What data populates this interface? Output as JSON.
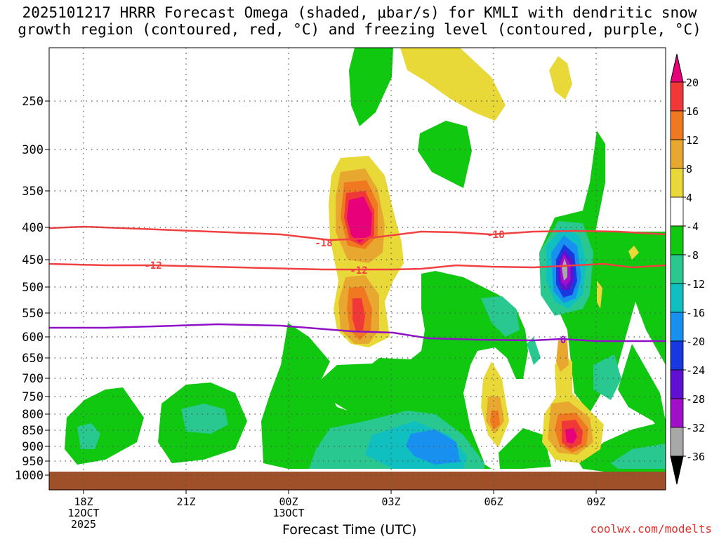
{
  "chart_data": {
    "type": "contour",
    "title_line1": "2025101217 HRRR Forecast Omega (shaded, μbar/s) for KMLI with dendritic snow",
    "title_line2": "growth region (contoured, red, °C) and freezing level (contoured, purple, °C)",
    "xlabel": "Forecast Time (UTC)",
    "credit": "coolwx.com/modelts",
    "x_ticks": [
      {
        "hour": 0,
        "label": "18Z",
        "sub1": "12OCT",
        "sub2": "2025"
      },
      {
        "hour": 3,
        "label": "21Z"
      },
      {
        "hour": 6,
        "label": "00Z",
        "sub1": "13OCT"
      },
      {
        "hour": 9,
        "label": "03Z"
      },
      {
        "hour": 12,
        "label": "06Z"
      },
      {
        "hour": 15,
        "label": "09Z"
      }
    ],
    "xlim": [
      -1,
      17
    ],
    "y_ticks": [
      "250",
      "300",
      "350",
      "400",
      "450",
      "500",
      "550",
      "600",
      "650",
      "700",
      "750",
      "800",
      "850",
      "900",
      "950",
      "1000"
    ],
    "colorbar": {
      "labels": [
        "20",
        "16",
        "12",
        "8",
        "4",
        "-4",
        "-8",
        "-12",
        "-16",
        "-20",
        "-24",
        "-28",
        "-32",
        "-36"
      ],
      "colors": {
        "gt20": "#e8007a",
        "16_20": "#f03838",
        "12_16": "#f07820",
        "8_12": "#e8a830",
        "4_8": "#e8d838",
        "neg4_4": "#ffffff",
        "neg8_neg4": "#10c810",
        "neg12_neg8": "#28c890",
        "neg16_neg12": "#10c0c0",
        "neg20_neg16": "#1890f0",
        "neg24_neg20": "#1838e0",
        "neg28_neg24": "#6010d0",
        "neg32_neg28": "#a010c8",
        "neg36_neg32": "#a8a8a8",
        "lt36": "#000000"
      }
    },
    "isotherms": [
      {
        "label": "-18",
        "color": "#f04040"
      },
      {
        "label": "-12",
        "color": "#f04040"
      },
      {
        "label": "0",
        "color": "#9010c8"
      }
    ],
    "ground_color": "#a05028"
  }
}
